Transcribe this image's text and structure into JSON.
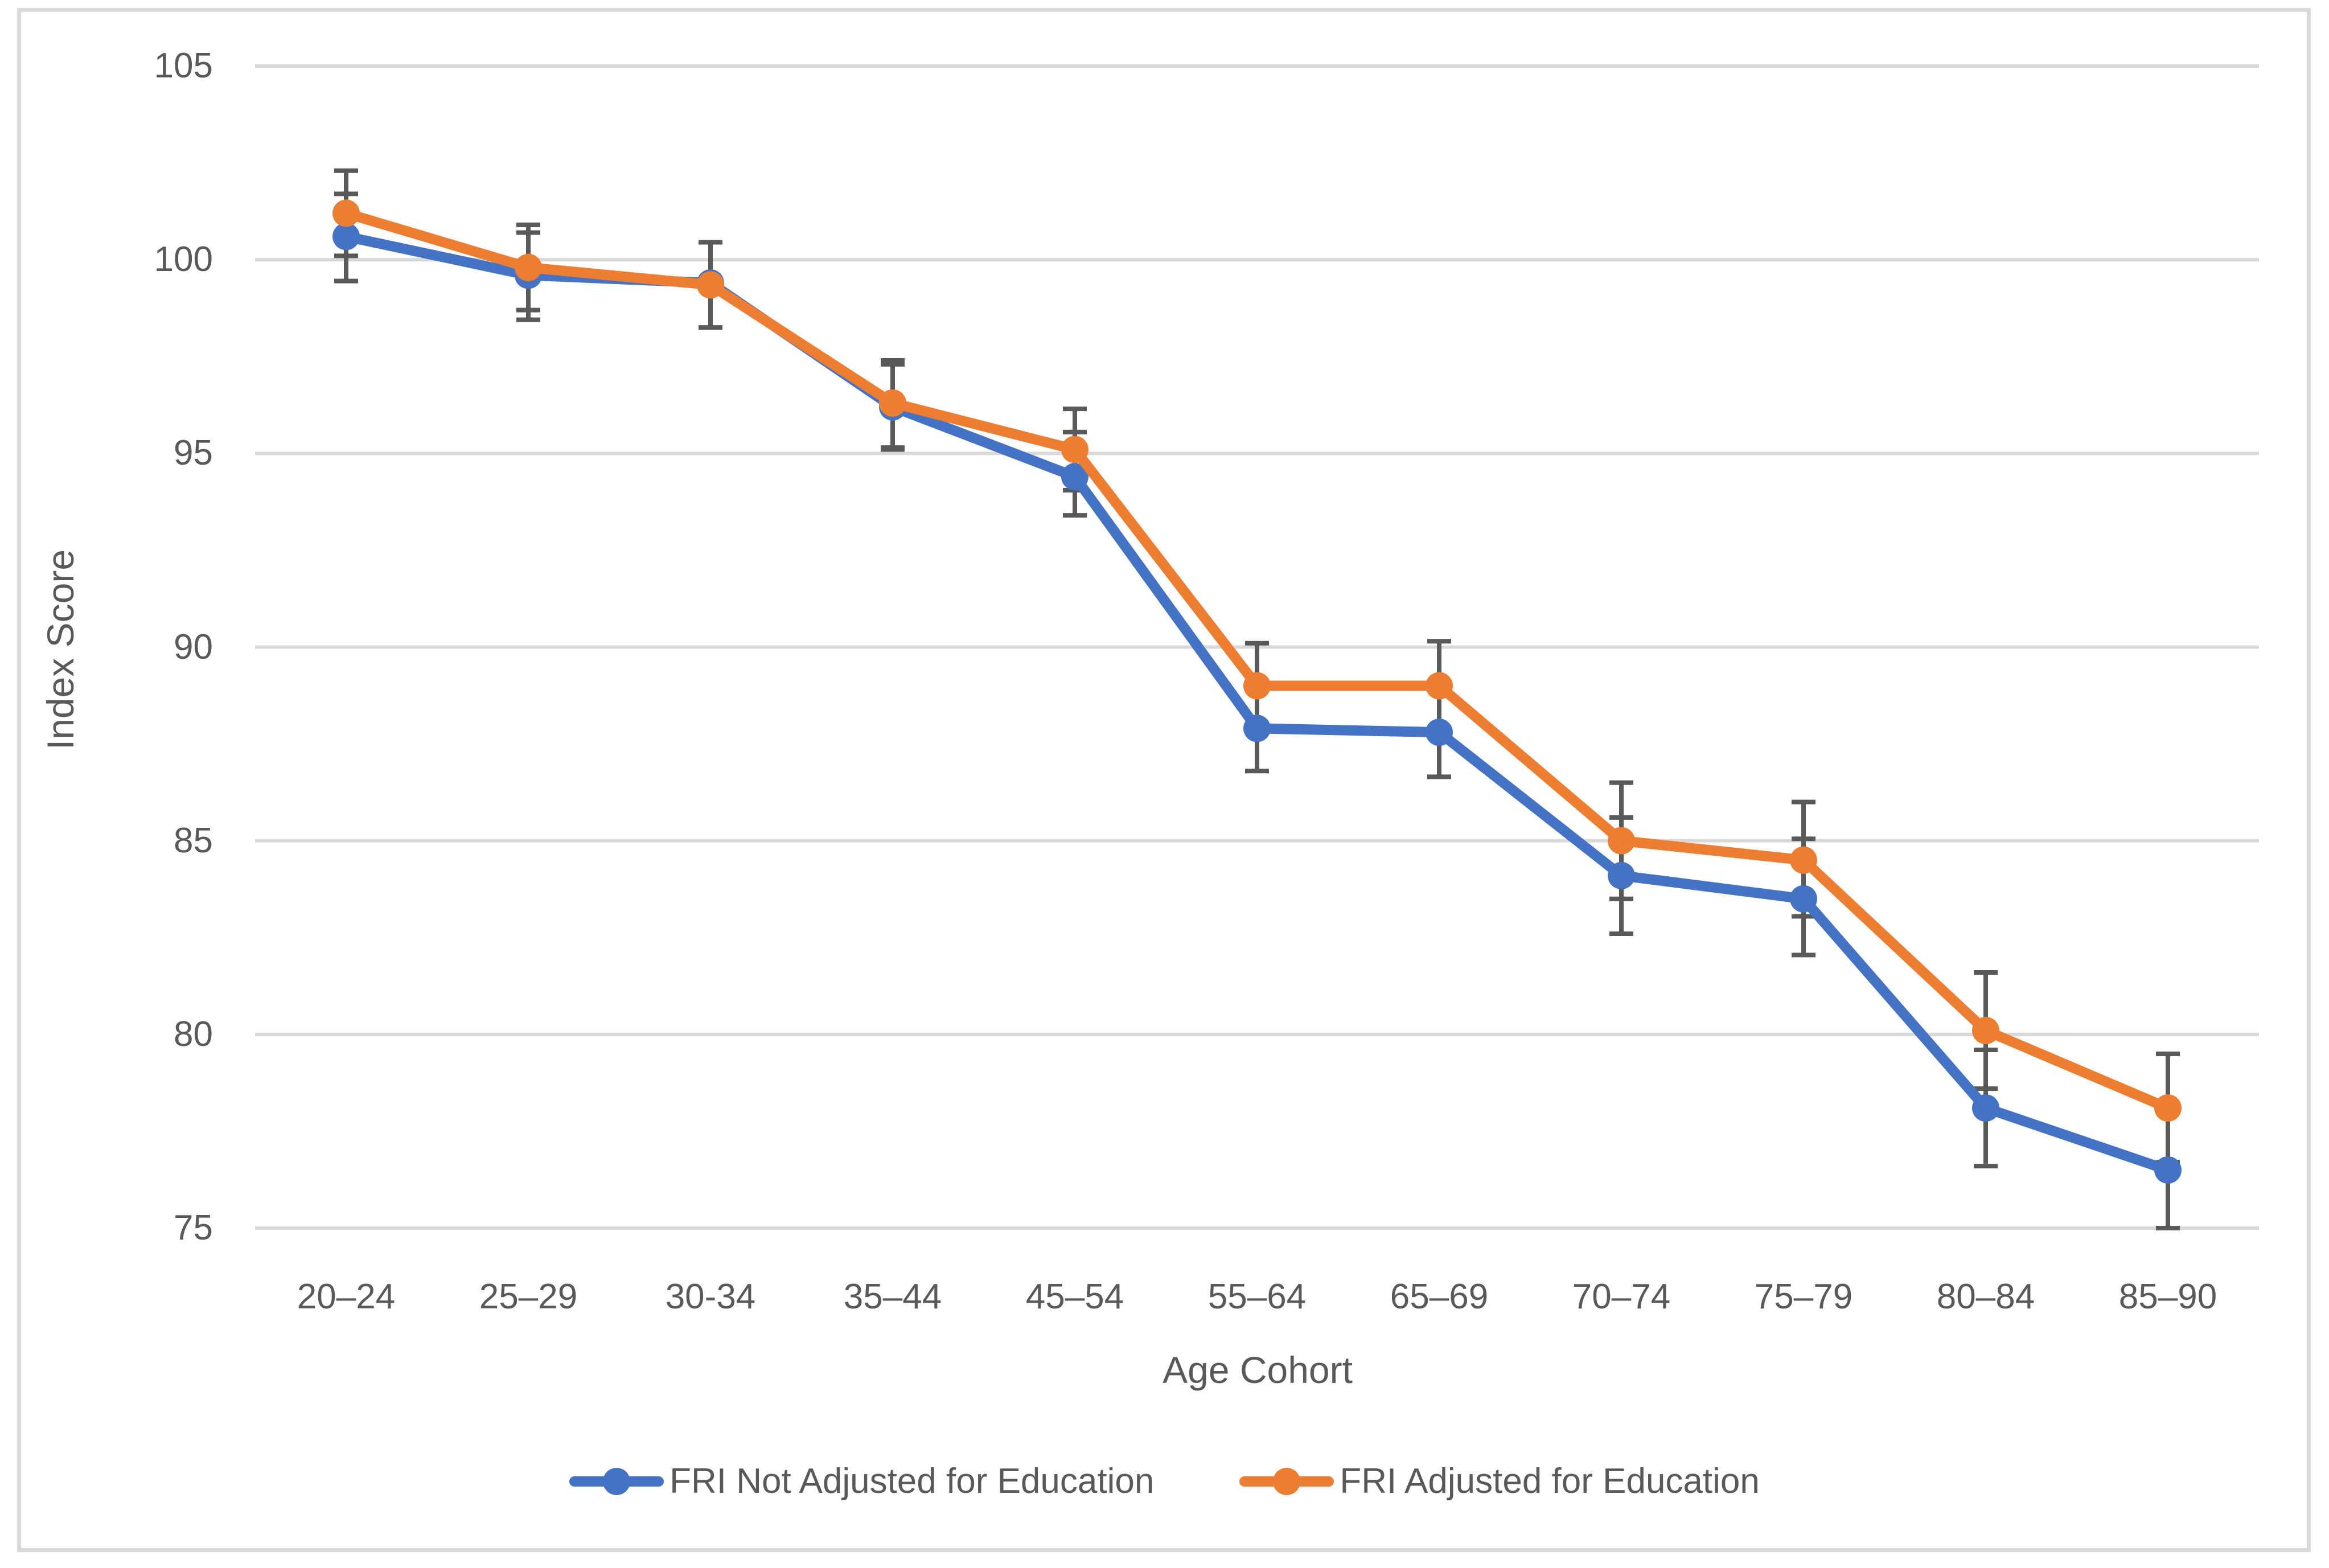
{
  "figure": {
    "background": "#FFFFFF",
    "border_color": "#D9D9D9"
  },
  "chart_data": {
    "type": "line",
    "title": "",
    "xlabel": "Age Cohort",
    "ylabel": "Index Score",
    "ylim": [
      75,
      105
    ],
    "yticks": [
      75,
      80,
      85,
      90,
      95,
      100,
      105
    ],
    "grid": "horizontal",
    "legend_position": "bottom",
    "gridline_color": "#D9D9D9",
    "error_bar_color": "#595959",
    "text_color": "#595959",
    "categories": [
      "20–24",
      "25–29",
      "30-34",
      "35–44",
      "45–54",
      "55–64",
      "65–69",
      "70–74",
      "75–79",
      "80–84",
      "85–90"
    ],
    "series": [
      {
        "name": "FRI Not Adjusted for Education",
        "color": "#4472C4",
        "values": [
          100.6,
          99.6,
          99.4,
          96.2,
          94.4,
          87.9,
          87.8,
          84.1,
          83.5,
          78.1,
          76.5
        ],
        "error_low": [
          99.45,
          98.45,
          98.25,
          95.1,
          93.4,
          86.8,
          86.65,
          82.6,
          82.05,
          76.6,
          75.0
        ],
        "error_high": [
          101.7,
          100.7,
          100.45,
          97.3,
          95.55,
          88.95,
          88.95,
          85.6,
          85.05,
          79.6,
          78.0
        ]
      },
      {
        "name": "FRI Adjusted for Education",
        "color": "#ED7D31",
        "values": [
          101.2,
          99.8,
          99.35,
          96.3,
          95.1,
          89.0,
          89.0,
          85.0,
          84.5,
          80.1,
          78.1
        ],
        "error_low": [
          100.1,
          98.7,
          98.25,
          95.15,
          94.05,
          87.9,
          87.85,
          83.5,
          83.05,
          78.6,
          76.7
        ],
        "error_high": [
          102.3,
          100.9,
          100.45,
          97.4,
          96.15,
          90.1,
          90.15,
          86.5,
          86.0,
          81.6,
          79.5
        ]
      }
    ]
  }
}
